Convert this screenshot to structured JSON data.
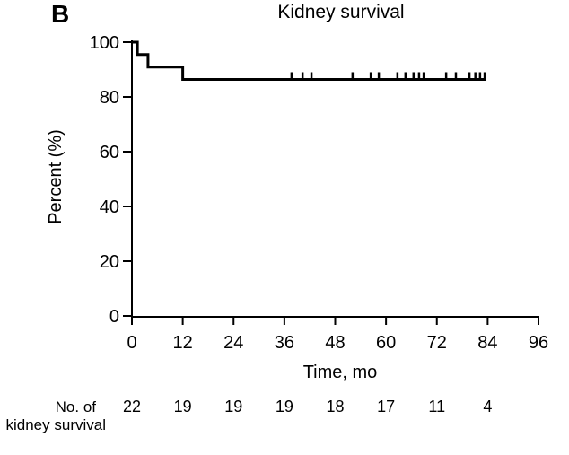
{
  "figure": {
    "panel_label": "B",
    "title": "Kidney survival",
    "xlabel": "Time, mo",
    "ylabel": "Percent (%)"
  },
  "chart_data": {
    "type": "line",
    "subtype": "kaplan-meier-step",
    "title": "Kidney survival",
    "xlabel": "Time, mo",
    "ylabel": "Percent (%)",
    "xlim": [
      0,
      96
    ],
    "ylim": [
      0,
      100
    ],
    "xticks": [
      0,
      12,
      24,
      36,
      48,
      60,
      72,
      84,
      96
    ],
    "yticks": [
      0,
      20,
      40,
      60,
      80,
      100
    ],
    "grid": false,
    "legend": "none",
    "line_color": "#000000",
    "series": [
      {
        "name": "Kidney survival",
        "steps": [
          {
            "time_mo": 0,
            "percent": 100
          },
          {
            "time_mo": 1.3,
            "percent": 95.5
          },
          {
            "time_mo": 3.8,
            "percent": 90.9
          },
          {
            "time_mo": 12.0,
            "percent": 86.4
          }
        ],
        "end_time_mo": 83.5,
        "censor_times_mo": [
          37.7,
          40.3,
          42.4,
          52.1,
          56.4,
          58.3,
          62.7,
          64.6,
          66.5,
          67.8,
          68.9,
          74.2,
          76.5,
          79.7,
          81.1,
          82.2,
          83.3
        ]
      }
    ]
  },
  "risk_table": {
    "label_line1": "No. of",
    "label_line2": "kidney survival",
    "times_mo": [
      0,
      12,
      24,
      36,
      48,
      60,
      72,
      84
    ],
    "counts": [
      22,
      19,
      19,
      19,
      18,
      17,
      11,
      4
    ]
  }
}
